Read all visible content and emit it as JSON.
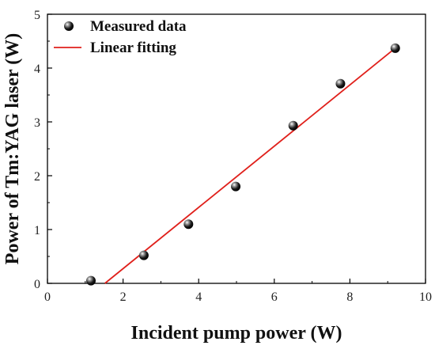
{
  "chart_data": {
    "type": "scatter",
    "title": "",
    "xlabel": "Incident pump power (W)",
    "ylabel": "Power of Tm:YAG laser (W)",
    "xlim": [
      0,
      10
    ],
    "ylim": [
      0,
      5
    ],
    "x_ticks": [
      0,
      2,
      4,
      6,
      8,
      10
    ],
    "y_ticks": [
      0,
      1,
      2,
      3,
      4,
      5
    ],
    "grid": false,
    "legend_position": "top-left",
    "series": [
      {
        "name": "Measured data",
        "kind": "scatter",
        "marker": "sphere",
        "color": "#000000",
        "points": [
          {
            "x": 1.15,
            "y": 0.05
          },
          {
            "x": 2.55,
            "y": 0.52
          },
          {
            "x": 3.73,
            "y": 1.1
          },
          {
            "x": 4.98,
            "y": 1.8
          },
          {
            "x": 6.5,
            "y": 2.93
          },
          {
            "x": 7.75,
            "y": 3.71
          },
          {
            "x": 9.2,
            "y": 4.37
          }
        ]
      },
      {
        "name": "Linear fitting",
        "kind": "line",
        "color": "#e0201b",
        "points": [
          {
            "x": 1.52,
            "y": 0.0
          },
          {
            "x": 9.2,
            "y": 4.37
          }
        ]
      }
    ]
  }
}
